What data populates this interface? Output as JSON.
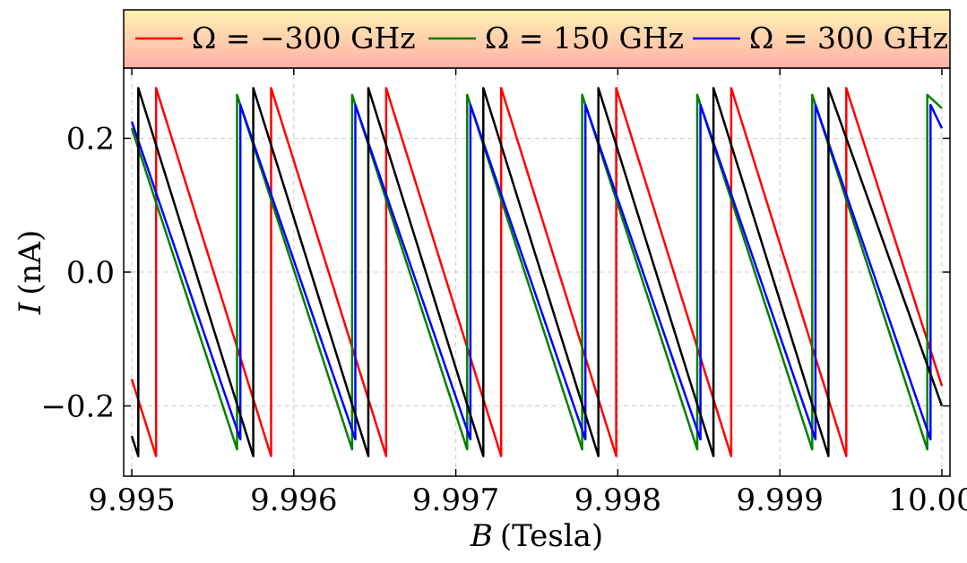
{
  "chart_data": {
    "type": "line",
    "title": "",
    "xlabel": {
      "var": "B",
      "unit": "(Tesla)"
    },
    "ylabel": {
      "var": "I",
      "unit": "(nA)"
    },
    "xlim": [
      9.99495,
      10.00005
    ],
    "ylim": [
      -0.305,
      0.305
    ],
    "xticks": [
      9.995,
      9.996,
      9.997,
      9.998,
      9.999,
      10.0
    ],
    "xtick_labels": [
      "9.995",
      "9.996",
      "9.997",
      "9.998",
      "9.999",
      "10.000"
    ],
    "yticks": [
      -0.2,
      0.0,
      0.2
    ],
    "ytick_labels": [
      "−0.2",
      "0.0",
      "0.2"
    ],
    "grid": true,
    "legend_position": "top",
    "series": [
      {
        "name": "Ω = −300 GHz",
        "color": "#ff0000",
        "x": [
          9.995,
          9.99515,
          9.99515,
          9.99586,
          9.99586,
          9.99657,
          9.99657,
          9.99728,
          9.99728,
          9.99799,
          9.99799,
          9.9987,
          9.9987,
          9.99941,
          9.99941,
          10.0
        ],
        "y": [
          -0.16,
          -0.275,
          0.275,
          -0.275,
          0.275,
          -0.275,
          0.275,
          -0.275,
          0.275,
          -0.275,
          0.275,
          -0.275,
          0.275,
          -0.275,
          0.275,
          -0.17
        ]
      },
      {
        "name": "Ω = 150 GHz",
        "color": "#008000",
        "x": [
          9.995,
          9.99565,
          9.99565,
          9.99636,
          9.99636,
          9.99707,
          9.99707,
          9.99778,
          9.99778,
          9.99849,
          9.99849,
          9.9992,
          9.9992,
          9.99991,
          9.99991,
          10.0
        ],
        "y": [
          0.215,
          -0.265,
          0.265,
          -0.265,
          0.265,
          -0.265,
          0.265,
          -0.265,
          0.265,
          -0.265,
          0.265,
          -0.265,
          0.265,
          -0.265,
          0.265,
          0.245
        ]
      },
      {
        "name": "Ω = 300 GHz",
        "color": "#0000ff",
        "x": [
          9.995,
          9.99567,
          9.99567,
          9.99638,
          9.99638,
          9.99709,
          9.99709,
          9.9978,
          9.9978,
          9.99851,
          9.99851,
          9.99922,
          9.99922,
          9.99993,
          9.99993,
          10.0
        ],
        "y": [
          0.225,
          -0.25,
          0.25,
          -0.25,
          0.25,
          -0.25,
          0.25,
          -0.25,
          0.25,
          -0.25,
          0.25,
          -0.25,
          0.25,
          -0.25,
          0.25,
          0.215
        ]
      },
      {
        "name": "",
        "color": "#000000",
        "x": [
          9.995,
          9.99504,
          9.99504,
          9.99575,
          9.99575,
          9.99646,
          9.99646,
          9.99717,
          9.99717,
          9.99788,
          9.99788,
          9.99859,
          9.99859,
          9.9993,
          9.9993,
          10.0
        ],
        "y": [
          -0.245,
          -0.275,
          0.275,
          -0.275,
          0.275,
          -0.275,
          0.275,
          -0.275,
          0.275,
          -0.275,
          0.275,
          -0.275,
          0.275,
          -0.275,
          0.275,
          -0.2
        ]
      }
    ],
    "legend": [
      {
        "name": "Ω = −300 GHz",
        "color": "#ff0000"
      },
      {
        "name": "Ω = 150 GHz",
        "color": "#008000"
      },
      {
        "name": "Ω = 300 GHz",
        "color": "#0000ff"
      }
    ],
    "legend_style": {
      "bg_top": "#fff2b0",
      "bg_bottom": "#ffb0a8",
      "border": "#000000"
    }
  }
}
